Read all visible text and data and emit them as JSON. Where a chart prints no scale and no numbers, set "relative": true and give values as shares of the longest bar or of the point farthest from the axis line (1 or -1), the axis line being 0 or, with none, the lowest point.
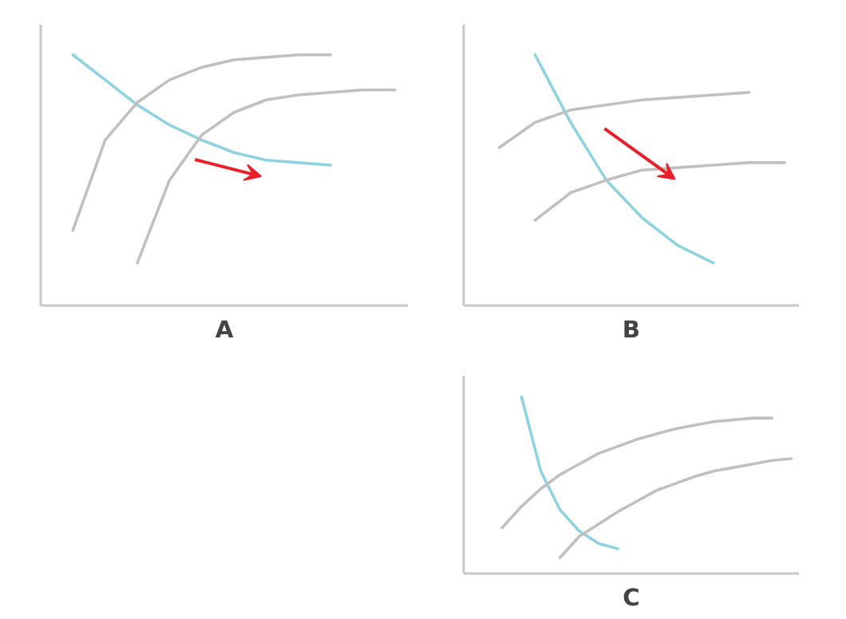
{
  "chart_data": [
    {
      "type": "line",
      "title": "A",
      "relative": true,
      "categories": [
        null,
        null,
        null,
        null,
        null,
        null,
        null,
        null,
        null,
        null,
        null,
        null
      ],
      "series": [
        {
          "color": "#8fd3e0",
          "values": [
            null,
            1.0,
            0.9,
            0.8,
            0.72,
            0.66,
            0.61,
            0.58,
            0.57,
            0.56,
            null,
            null
          ]
        },
        {
          "color": "#c0c0c0",
          "values": [
            null,
            0.3,
            0.66,
            0.81,
            0.9,
            0.95,
            0.98,
            0.99,
            1.0,
            1.0,
            null,
            null
          ]
        },
        {
          "color": "#c0c0c0",
          "values": [
            null,
            null,
            null,
            0.17,
            0.5,
            0.68,
            0.77,
            0.82,
            0.84,
            0.85,
            0.86,
            0.86
          ]
        }
      ]
    },
    {
      "type": "line",
      "title": "B",
      "relative": true,
      "categories": [
        null,
        null,
        null,
        null,
        null,
        null,
        null,
        null,
        null,
        null
      ],
      "series": [
        {
          "color": "#8fd3e0",
          "values": [
            null,
            null,
            1.0,
            0.73,
            0.5,
            0.35,
            0.24,
            0.17,
            null,
            null
          ]
        },
        {
          "color": "#c0c0c0",
          "values": [
            null,
            0.63,
            0.73,
            0.78,
            0.8,
            0.82,
            0.83,
            0.84,
            0.85,
            null
          ]
        },
        {
          "color": "#c0c0c0",
          "values": [
            null,
            null,
            0.34,
            0.45,
            0.5,
            0.54,
            0.55,
            0.56,
            0.57,
            0.57
          ]
        }
      ]
    },
    {
      "type": "line",
      "title": "C",
      "relative": true,
      "categories": [
        null,
        null,
        null,
        null,
        null,
        null,
        null,
        null,
        null,
        null,
        null,
        null,
        null,
        null,
        null,
        null,
        null,
        null
      ],
      "series": [
        {
          "color": "#8fd3e0",
          "values": [
            null,
            null,
            null,
            1.0,
            0.58,
            0.36,
            0.24,
            0.17,
            0.14,
            null,
            null,
            null,
            null,
            null,
            null,
            null,
            null,
            null
          ]
        },
        {
          "color": "#c0c0c0",
          "values": [
            null,
            null,
            0.26,
            0.38,
            0.48,
            0.56,
            0.62,
            0.68,
            0.72,
            0.76,
            0.79,
            0.82,
            0.84,
            0.86,
            0.87,
            0.88,
            0.88,
            null
          ]
        },
        {
          "color": "#c0c0c0",
          "values": [
            null,
            null,
            null,
            null,
            null,
            0.09,
            0.21,
            0.28,
            0.35,
            0.41,
            0.47,
            0.51,
            0.55,
            0.58,
            0.6,
            0.62,
            0.64,
            0.65
          ]
        }
      ]
    }
  ]
}
